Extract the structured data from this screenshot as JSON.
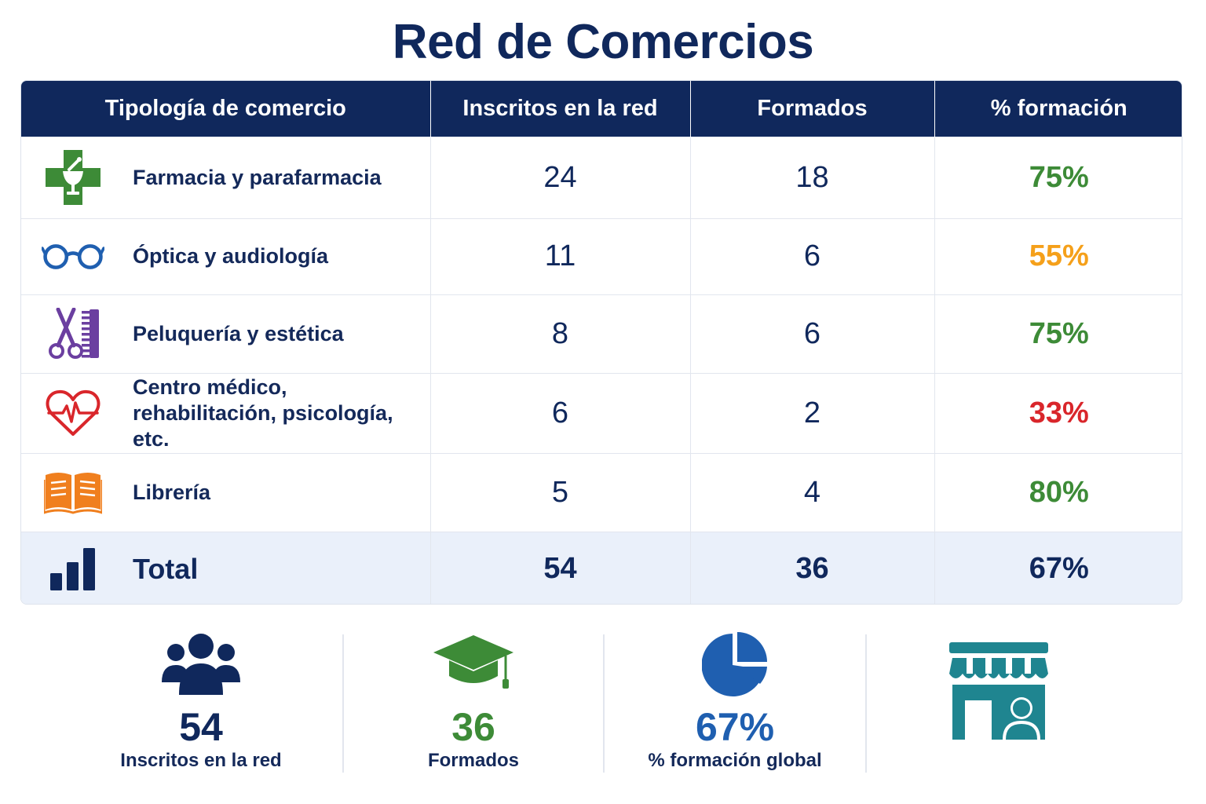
{
  "title": "Red de Comercios",
  "chart_data": {
    "type": "table",
    "columns": [
      "Tipología de comercio",
      "Inscritos en la red",
      "Formados",
      "% formación"
    ],
    "rows": [
      {
        "type": "Farmacia y parafarmacia",
        "icon": "pharmacy-cross-icon",
        "enrolled": 24,
        "trained": 18,
        "percent": "75%",
        "color": "#3d8b37"
      },
      {
        "type": "Óptica y audiología",
        "icon": "glasses-icon",
        "enrolled": 11,
        "trained": 6,
        "percent": "55%",
        "color": "#f5a01a"
      },
      {
        "type": "Peluquería y estética",
        "icon": "scissors-comb-icon",
        "enrolled": 8,
        "trained": 6,
        "percent": "75%",
        "color": "#3d8b37"
      },
      {
        "type": "Centro médico, rehabilitación, psicología, etc.",
        "icon": "heart-pulse-icon",
        "enrolled": 6,
        "trained": 2,
        "percent": "33%",
        "color": "#d9262b"
      },
      {
        "type": "Librería",
        "icon": "open-book-icon",
        "enrolled": 5,
        "trained": 4,
        "percent": "80%",
        "color": "#3d8b37"
      }
    ],
    "total": {
      "type": "Total",
      "icon": "bar-chart-icon",
      "enrolled": 54,
      "trained": 36,
      "percent": "67%"
    }
  },
  "summary": [
    {
      "icon": "people-group-icon",
      "value": "54",
      "label": "Inscritos en la red",
      "color": "#10285c"
    },
    {
      "icon": "graduation-cap-icon",
      "value": "36",
      "label": "Formados",
      "color": "#3d8b37"
    },
    {
      "icon": "pie-chart-icon",
      "value": "67%",
      "label": "% formación global",
      "color": "#1f5fb0"
    },
    {
      "icon": "storefront-icon",
      "color": "#1f8590"
    }
  ]
}
